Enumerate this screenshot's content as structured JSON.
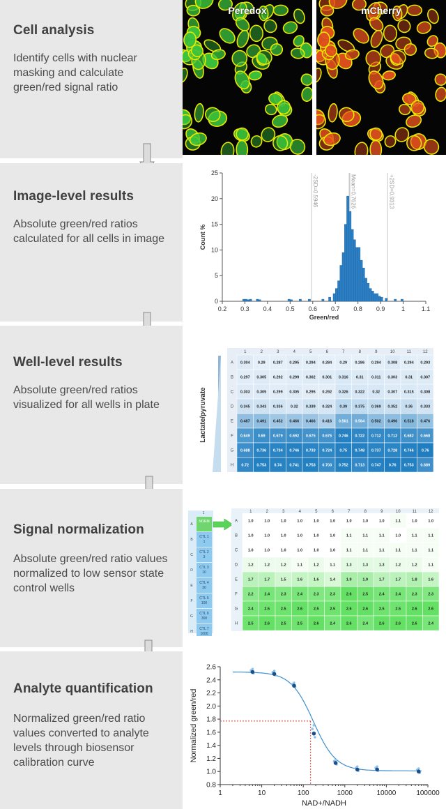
{
  "steps": [
    {
      "title": "Cell analysis",
      "description": "Identify cells with nuclear masking and calculate green/red signal ratio"
    },
    {
      "title": "Image-level results",
      "description": "Absolute green/red ratios calculated for all cells in image"
    },
    {
      "title": "Well-level results",
      "description": "Absolute green/red ratios visualized for all wells in plate"
    },
    {
      "title": "Signal normalization",
      "description": "Absolute green/red ratio values normalized to low sensor state control wells"
    },
    {
      "title": "Analyte quantification",
      "description": "Normalized green/red ratio values converted to analyte levels through biosensor calibration curve"
    }
  ],
  "images": {
    "left_label": "Peredox",
    "right_label": "mCherry",
    "green": "#3cc23c",
    "red": "#e0501e",
    "outline": "#e8e800"
  },
  "histogram": {
    "xlabel": "Green/red",
    "ylabel": "Count %",
    "xticks": [
      "0.2",
      "0.3",
      "0.4",
      "0.5",
      "0.6",
      "0.7",
      "0.8",
      "0.9",
      "1",
      "1.1"
    ],
    "yticks": [
      "0",
      "5",
      "10",
      "15",
      "20",
      "25"
    ],
    "markers": [
      "-2SD=0.5946",
      "Mean=0.7626",
      "+2SD=0.9313"
    ],
    "bar_color": "#2b7fc4"
  },
  "plate": {
    "side_label": "Lactate/pyruvate",
    "columns": [
      "1",
      "2",
      "3",
      "4",
      "5",
      "6",
      "7",
      "8",
      "9",
      "10",
      "11",
      "12"
    ],
    "rows": [
      "A",
      "B",
      "C",
      "D",
      "E",
      "F",
      "G",
      "H"
    ],
    "values": [
      [
        "0.304",
        "0.29",
        "0.287",
        "0.295",
        "0.294",
        "0.284",
        "0.29",
        "0.286",
        "0.294",
        "0.308",
        "0.294",
        "0.293"
      ],
      [
        "0.297",
        "0.305",
        "0.292",
        "0.299",
        "0.302",
        "0.301",
        "0.316",
        "0.31",
        "0.311",
        "0.303",
        "0.31",
        "0.307"
      ],
      [
        "0.303",
        "0.305",
        "0.299",
        "0.305",
        "0.295",
        "0.292",
        "0.326",
        "0.322",
        "0.32",
        "0.307",
        "0.315",
        "0.308"
      ],
      [
        "0.345",
        "0.343",
        "0.336",
        "0.32",
        "0.339",
        "0.324",
        "0.39",
        "0.375",
        "0.369",
        "0.352",
        "0.36",
        "0.333"
      ],
      [
        "0.487",
        "0.491",
        "0.452",
        "0.466",
        "0.466",
        "0.416",
        "0.561",
        "0.564",
        "0.502",
        "0.496",
        "0.518",
        "0.476"
      ],
      [
        "0.649",
        "0.69",
        "0.679",
        "0.692",
        "0.675",
        "0.675",
        "0.746",
        "0.722",
        "0.712",
        "0.712",
        "0.682",
        "0.668"
      ],
      [
        "0.688",
        "0.736",
        "0.734",
        "0.746",
        "0.733",
        "0.724",
        "0.75",
        "0.748",
        "0.737",
        "0.728",
        "0.746",
        "0.76"
      ],
      [
        "0.72",
        "0.753",
        "0.74",
        "0.741",
        "0.753",
        "0.703",
        "0.752",
        "0.713",
        "0.747",
        "0.76",
        "0.753",
        "0.689"
      ]
    ]
  },
  "norm": {
    "side_header": "1",
    "side_rows": [
      "A",
      "B",
      "C",
      "D",
      "E",
      "F",
      "G",
      "H"
    ],
    "side_labels": [
      "NORM",
      "CTL 1\n1",
      "CTL 2\n3",
      "CTL 3\n10",
      "CTL 4\n30",
      "CTL 5\n100",
      "CTL 6\n300",
      "CTL 7\n1000"
    ],
    "columns": [
      "1",
      "2",
      "3",
      "4",
      "5",
      "6",
      "7",
      "8",
      "9",
      "10",
      "11",
      "12"
    ],
    "rows": [
      "A",
      "B",
      "C",
      "D",
      "E",
      "F",
      "G",
      "H"
    ],
    "values": [
      [
        "1.0",
        "1.0",
        "1.0",
        "1.0",
        "1.0",
        "1.0",
        "1.0",
        "1.0",
        "1.0",
        "1.1",
        "1.0",
        "1.0"
      ],
      [
        "1.0",
        "1.0",
        "1.0",
        "1.0",
        "1.0",
        "1.0",
        "1.1",
        "1.1",
        "1.1",
        "1.0",
        "1.1",
        "1.1"
      ],
      [
        "1.0",
        "1.0",
        "1.0",
        "1.0",
        "1.0",
        "1.0",
        "1.1",
        "1.1",
        "1.1",
        "1.1",
        "1.1",
        "1.1"
      ],
      [
        "1.2",
        "1.2",
        "1.2",
        "1.1",
        "1.2",
        "1.1",
        "1.3",
        "1.3",
        "1.3",
        "1.2",
        "1.2",
        "1.1"
      ],
      [
        "1.7",
        "1.7",
        "1.5",
        "1.6",
        "1.6",
        "1.4",
        "1.9",
        "1.9",
        "1.7",
        "1.7",
        "1.8",
        "1.6"
      ],
      [
        "2.2",
        "2.4",
        "2.3",
        "2.4",
        "2.3",
        "2.3",
        "2.6",
        "2.5",
        "2.4",
        "2.4",
        "2.3",
        "2.3"
      ],
      [
        "2.4",
        "2.5",
        "2.5",
        "2.6",
        "2.5",
        "2.5",
        "2.6",
        "2.6",
        "2.5",
        "2.5",
        "2.6",
        "2.6"
      ],
      [
        "2.5",
        "2.6",
        "2.5",
        "2.5",
        "2.6",
        "2.4",
        "2.6",
        "2.4",
        "2.6",
        "2.6",
        "2.6",
        "2.4"
      ]
    ]
  },
  "chart_data": {
    "type": "scatter",
    "xlabel": "NAD+/NADH",
    "ylabel": "Normalized green/red",
    "xscale": "log",
    "xlim": [
      1,
      100000
    ],
    "ylim": [
      0.8,
      2.6
    ],
    "xticks": [
      "1",
      "10",
      "100",
      "1000",
      "10000",
      "100000"
    ],
    "yticks": [
      "0.8",
      "1.0",
      "1.2",
      "1.4",
      "1.6",
      "1.8",
      "2.0",
      "2.2",
      "2.4",
      "2.6"
    ],
    "series": [
      {
        "x": [
          6,
          20,
          60,
          180,
          600,
          2000,
          6000,
          60000
        ],
        "y": [
          2.52,
          2.49,
          2.31,
          1.58,
          1.13,
          1.03,
          1.03,
          1.0
        ]
      }
    ],
    "fit": {
      "type": "sigmoid",
      "top": 2.52,
      "bottom": 1.01,
      "ec50": 175,
      "hill": 1.6
    },
    "annotation": {
      "y": 1.77,
      "x": 150,
      "style": "red dashed guide"
    }
  }
}
